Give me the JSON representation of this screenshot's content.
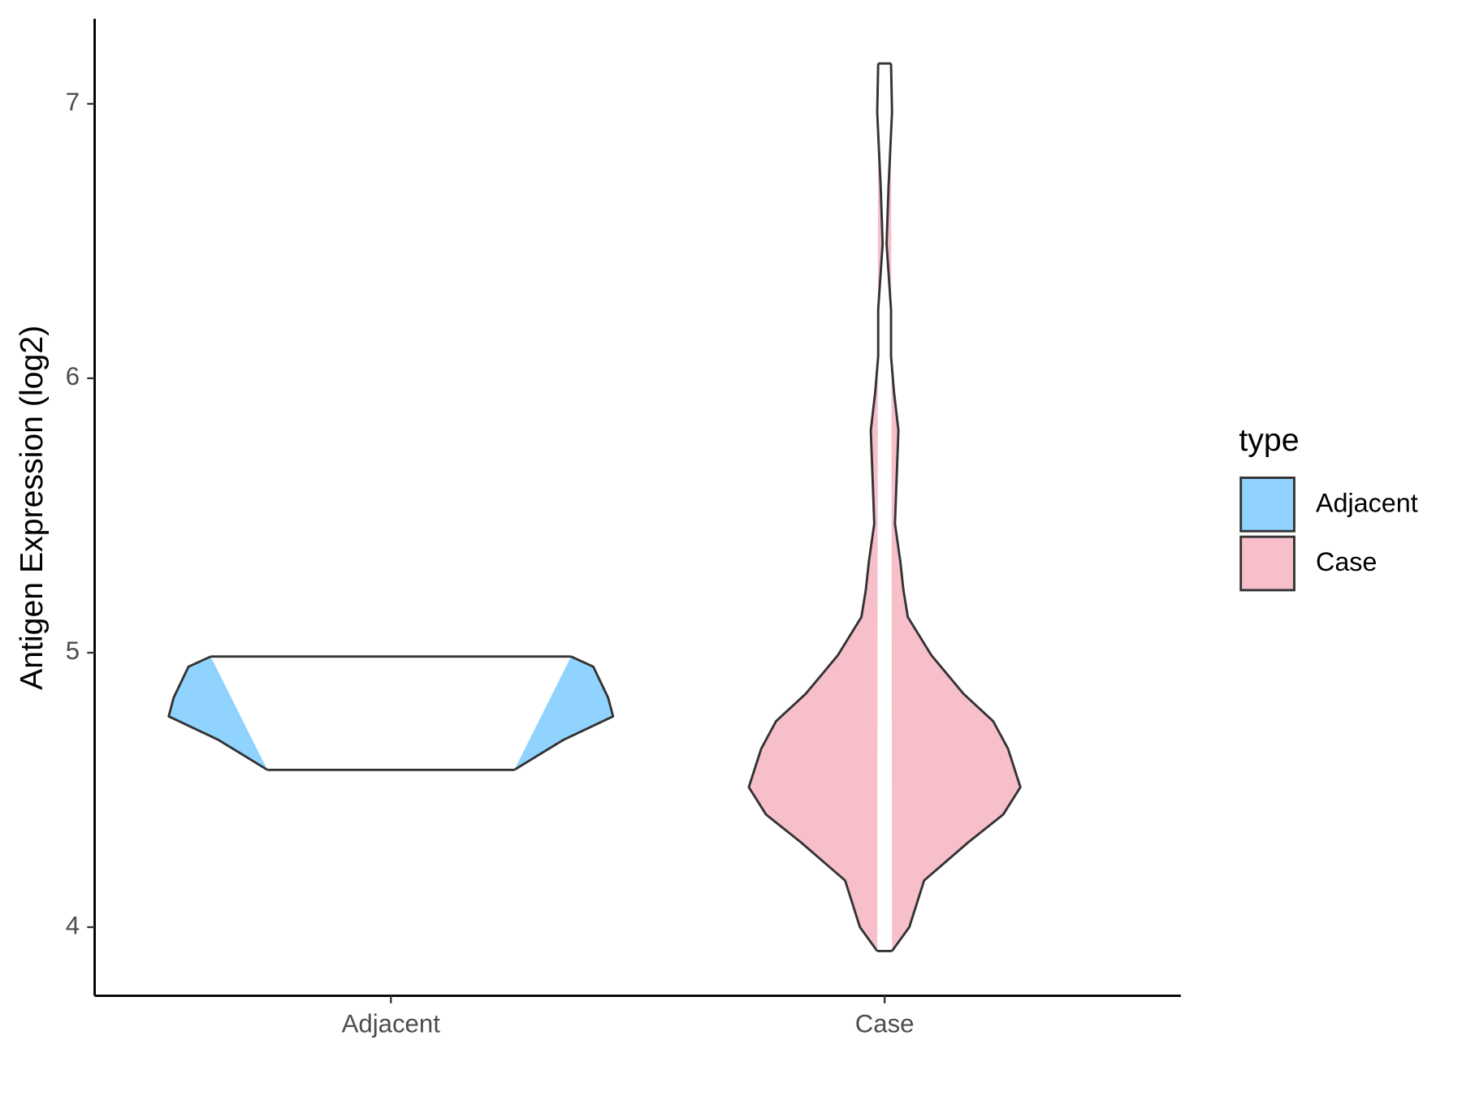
{
  "chart_data": {
    "type": "violin",
    "y_label": "Antigen Expression (log2)",
    "categories": [
      "Adjacent",
      "Case"
    ],
    "legend_title": "type",
    "legend_position": "right",
    "ylim": [
      3.75,
      7.31
    ],
    "yticks": [
      4,
      5,
      6,
      7
    ],
    "series": [
      {
        "name": "Adjacent",
        "color": "#90d3fe",
        "y": [
          4.573,
          4.683,
          4.768,
          4.836,
          4.949,
          4.986
        ],
        "half_width": [
          0.25,
          0.35,
          0.45,
          0.44,
          0.41,
          0.365
        ]
      },
      {
        "name": "Case",
        "color": "#f7bfca",
        "y": [
          3.913,
          4.0,
          4.17,
          4.31,
          4.41,
          4.51,
          4.65,
          4.75,
          4.85,
          4.99,
          5.13,
          5.23,
          5.33,
          5.47,
          5.57,
          5.81,
          5.95,
          6.08,
          6.25,
          6.49,
          6.7,
          6.97,
          7.147
        ],
        "half_width": [
          0.015,
          0.05,
          0.08,
          0.17,
          0.24,
          0.275,
          0.25,
          0.22,
          0.16,
          0.095,
          0.047,
          0.038,
          0.032,
          0.021,
          0.023,
          0.028,
          0.019,
          0.013,
          0.013,
          0.004,
          0.008,
          0.015,
          0.013
        ]
      }
    ]
  }
}
